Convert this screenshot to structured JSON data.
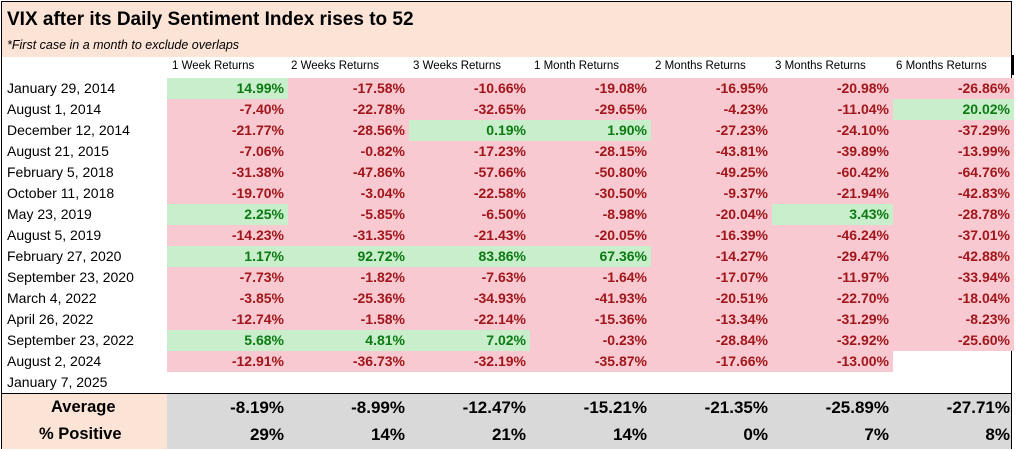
{
  "title": "VIX after its Daily Sentiment Index rises to 52",
  "subtitle": "*First case in a month to exclude overlaps",
  "columns": [
    "1 Week Returns",
    "2 Weeks Returns",
    "3 Weeks Returns",
    "1 Month Returns",
    "2 Months Returns",
    "3 Months Returns",
    "6 Months Returns"
  ],
  "rows": [
    {
      "date": "January 29, 2014",
      "values": [
        "14.99%",
        "-17.58%",
        "-10.66%",
        "-19.08%",
        "-16.95%",
        "-20.98%",
        "-26.86%"
      ]
    },
    {
      "date": "August 1, 2014",
      "values": [
        "-7.40%",
        "-22.78%",
        "-32.65%",
        "-29.65%",
        "-4.23%",
        "-11.04%",
        "20.02%"
      ]
    },
    {
      "date": "December 12, 2014",
      "values": [
        "-21.77%",
        "-28.56%",
        "0.19%",
        "1.90%",
        "-27.23%",
        "-24.10%",
        "-37.29%"
      ]
    },
    {
      "date": "August 21, 2015",
      "values": [
        "-7.06%",
        "-0.82%",
        "-17.23%",
        "-28.15%",
        "-43.81%",
        "-39.89%",
        "-13.99%"
      ]
    },
    {
      "date": "February 5, 2018",
      "values": [
        "-31.38%",
        "-47.86%",
        "-57.66%",
        "-50.80%",
        "-49.25%",
        "-60.42%",
        "-64.76%"
      ]
    },
    {
      "date": "October 11, 2018",
      "values": [
        "-19.70%",
        "-3.04%",
        "-22.58%",
        "-30.50%",
        "-9.37%",
        "-21.94%",
        "-42.83%"
      ]
    },
    {
      "date": "May 23, 2019",
      "values": [
        "2.25%",
        "-5.85%",
        "-6.50%",
        "-8.98%",
        "-20.04%",
        "3.43%",
        "-28.78%"
      ]
    },
    {
      "date": "August 5, 2019",
      "values": [
        "-14.23%",
        "-31.35%",
        "-21.43%",
        "-20.05%",
        "-16.39%",
        "-46.24%",
        "-37.01%"
      ]
    },
    {
      "date": "February 27, 2020",
      "values": [
        "1.17%",
        "92.72%",
        "83.86%",
        "67.36%",
        "-14.27%",
        "-29.47%",
        "-42.88%"
      ]
    },
    {
      "date": "September 23, 2020",
      "values": [
        "-7.73%",
        "-1.82%",
        "-7.63%",
        "-1.64%",
        "-17.07%",
        "-11.97%",
        "-33.94%"
      ]
    },
    {
      "date": "March 4, 2022",
      "values": [
        "-3.85%",
        "-25.36%",
        "-34.93%",
        "-41.93%",
        "-20.51%",
        "-22.70%",
        "-18.04%"
      ]
    },
    {
      "date": "April 26, 2022",
      "values": [
        "-12.74%",
        "-1.58%",
        "-22.14%",
        "-15.36%",
        "-13.34%",
        "-31.29%",
        "-8.23%"
      ]
    },
    {
      "date": "September 23, 2022",
      "values": [
        "5.68%",
        "4.81%",
        "7.02%",
        "-0.23%",
        "-28.84%",
        "-32.92%",
        "-25.60%"
      ]
    },
    {
      "date": "August 2, 2024",
      "values": [
        "-12.91%",
        "-36.73%",
        "-32.19%",
        "-35.87%",
        "-17.66%",
        "-13.00%",
        ""
      ]
    },
    {
      "date": "January 7, 2025",
      "values": [
        "",
        "",
        "",
        "",
        "",
        "",
        ""
      ]
    }
  ],
  "summary": [
    {
      "label": "Average",
      "values": [
        "-8.19%",
        "-8.99%",
        "-12.47%",
        "-15.21%",
        "-21.35%",
        "-25.89%",
        "-27.71%"
      ]
    },
    {
      "label": "% Positive",
      "values": [
        "29%",
        "14%",
        "21%",
        "14%",
        "0%",
        "7%",
        "8%"
      ]
    }
  ],
  "colors": {
    "negative_fill": "#f8c9d0",
    "negative_text": "#a0161b",
    "positive_fill": "#c9eecb",
    "positive_text": "#0b7a13",
    "header_fill": "#fbe3d6",
    "summary_fill": "#d9d9d9"
  }
}
